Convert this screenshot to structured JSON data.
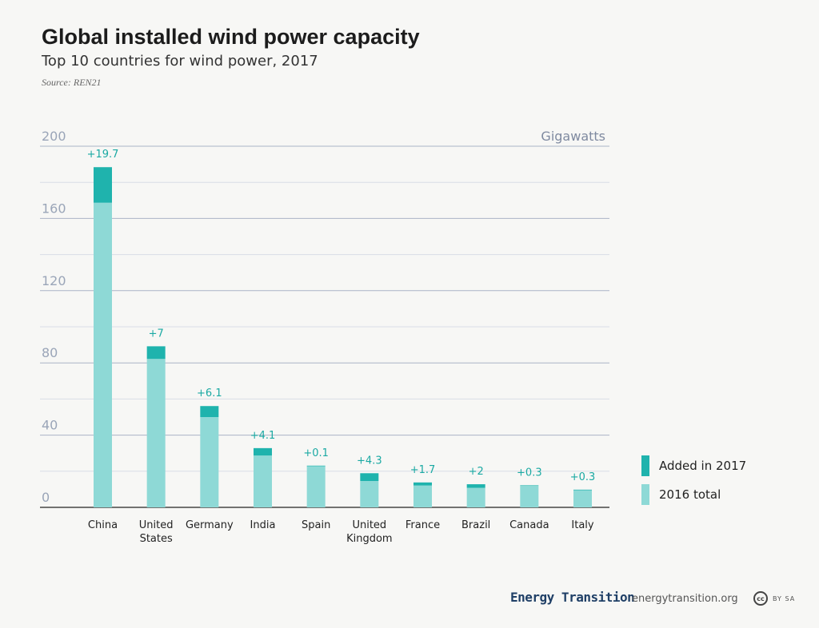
{
  "header": {
    "title": "Global installed wind power capacity",
    "subtitle": "Top 10 countries for wind power, 2017",
    "source": "Source: REN21"
  },
  "chart_data": {
    "type": "bar",
    "stacked": true,
    "unit_label": "Gigawatts",
    "categories": [
      [
        "China"
      ],
      [
        "United",
        "States"
      ],
      [
        "Germany"
      ],
      [
        "India"
      ],
      [
        "Spain"
      ],
      [
        "United",
        "Kingdom"
      ],
      [
        "France"
      ],
      [
        "Brazil"
      ],
      [
        "Canada"
      ],
      [
        "Italy"
      ]
    ],
    "series": [
      {
        "name": "2016 total",
        "color": "#8ed9d6",
        "values": [
          168.7,
          82.2,
          50.0,
          28.7,
          23.0,
          14.6,
          12.1,
          10.8,
          11.9,
          9.5
        ]
      },
      {
        "name": "Added in 2017",
        "color": "#1fb3ad",
        "values": [
          19.7,
          7,
          6.1,
          4.1,
          0.1,
          4.3,
          1.7,
          2,
          0.3,
          0.3
        ]
      }
    ],
    "data_labels": [
      "+19.7",
      "+7",
      "+6.1",
      "+4.1",
      "+0.1",
      "+4.3",
      "+1.7",
      "+2",
      "+0.3",
      "+0.3"
    ],
    "yticks": [
      "0",
      "40",
      "80",
      "120",
      "160",
      "200"
    ],
    "ylim": [
      0,
      200
    ],
    "grid": true,
    "legend": {
      "position": "right",
      "items": [
        "Added in 2017",
        "2016 total"
      ]
    }
  },
  "footer": {
    "brand": "Energy Transition",
    "website": "energytransition.org",
    "license_icon": "cc",
    "license_text": "BY SA"
  }
}
